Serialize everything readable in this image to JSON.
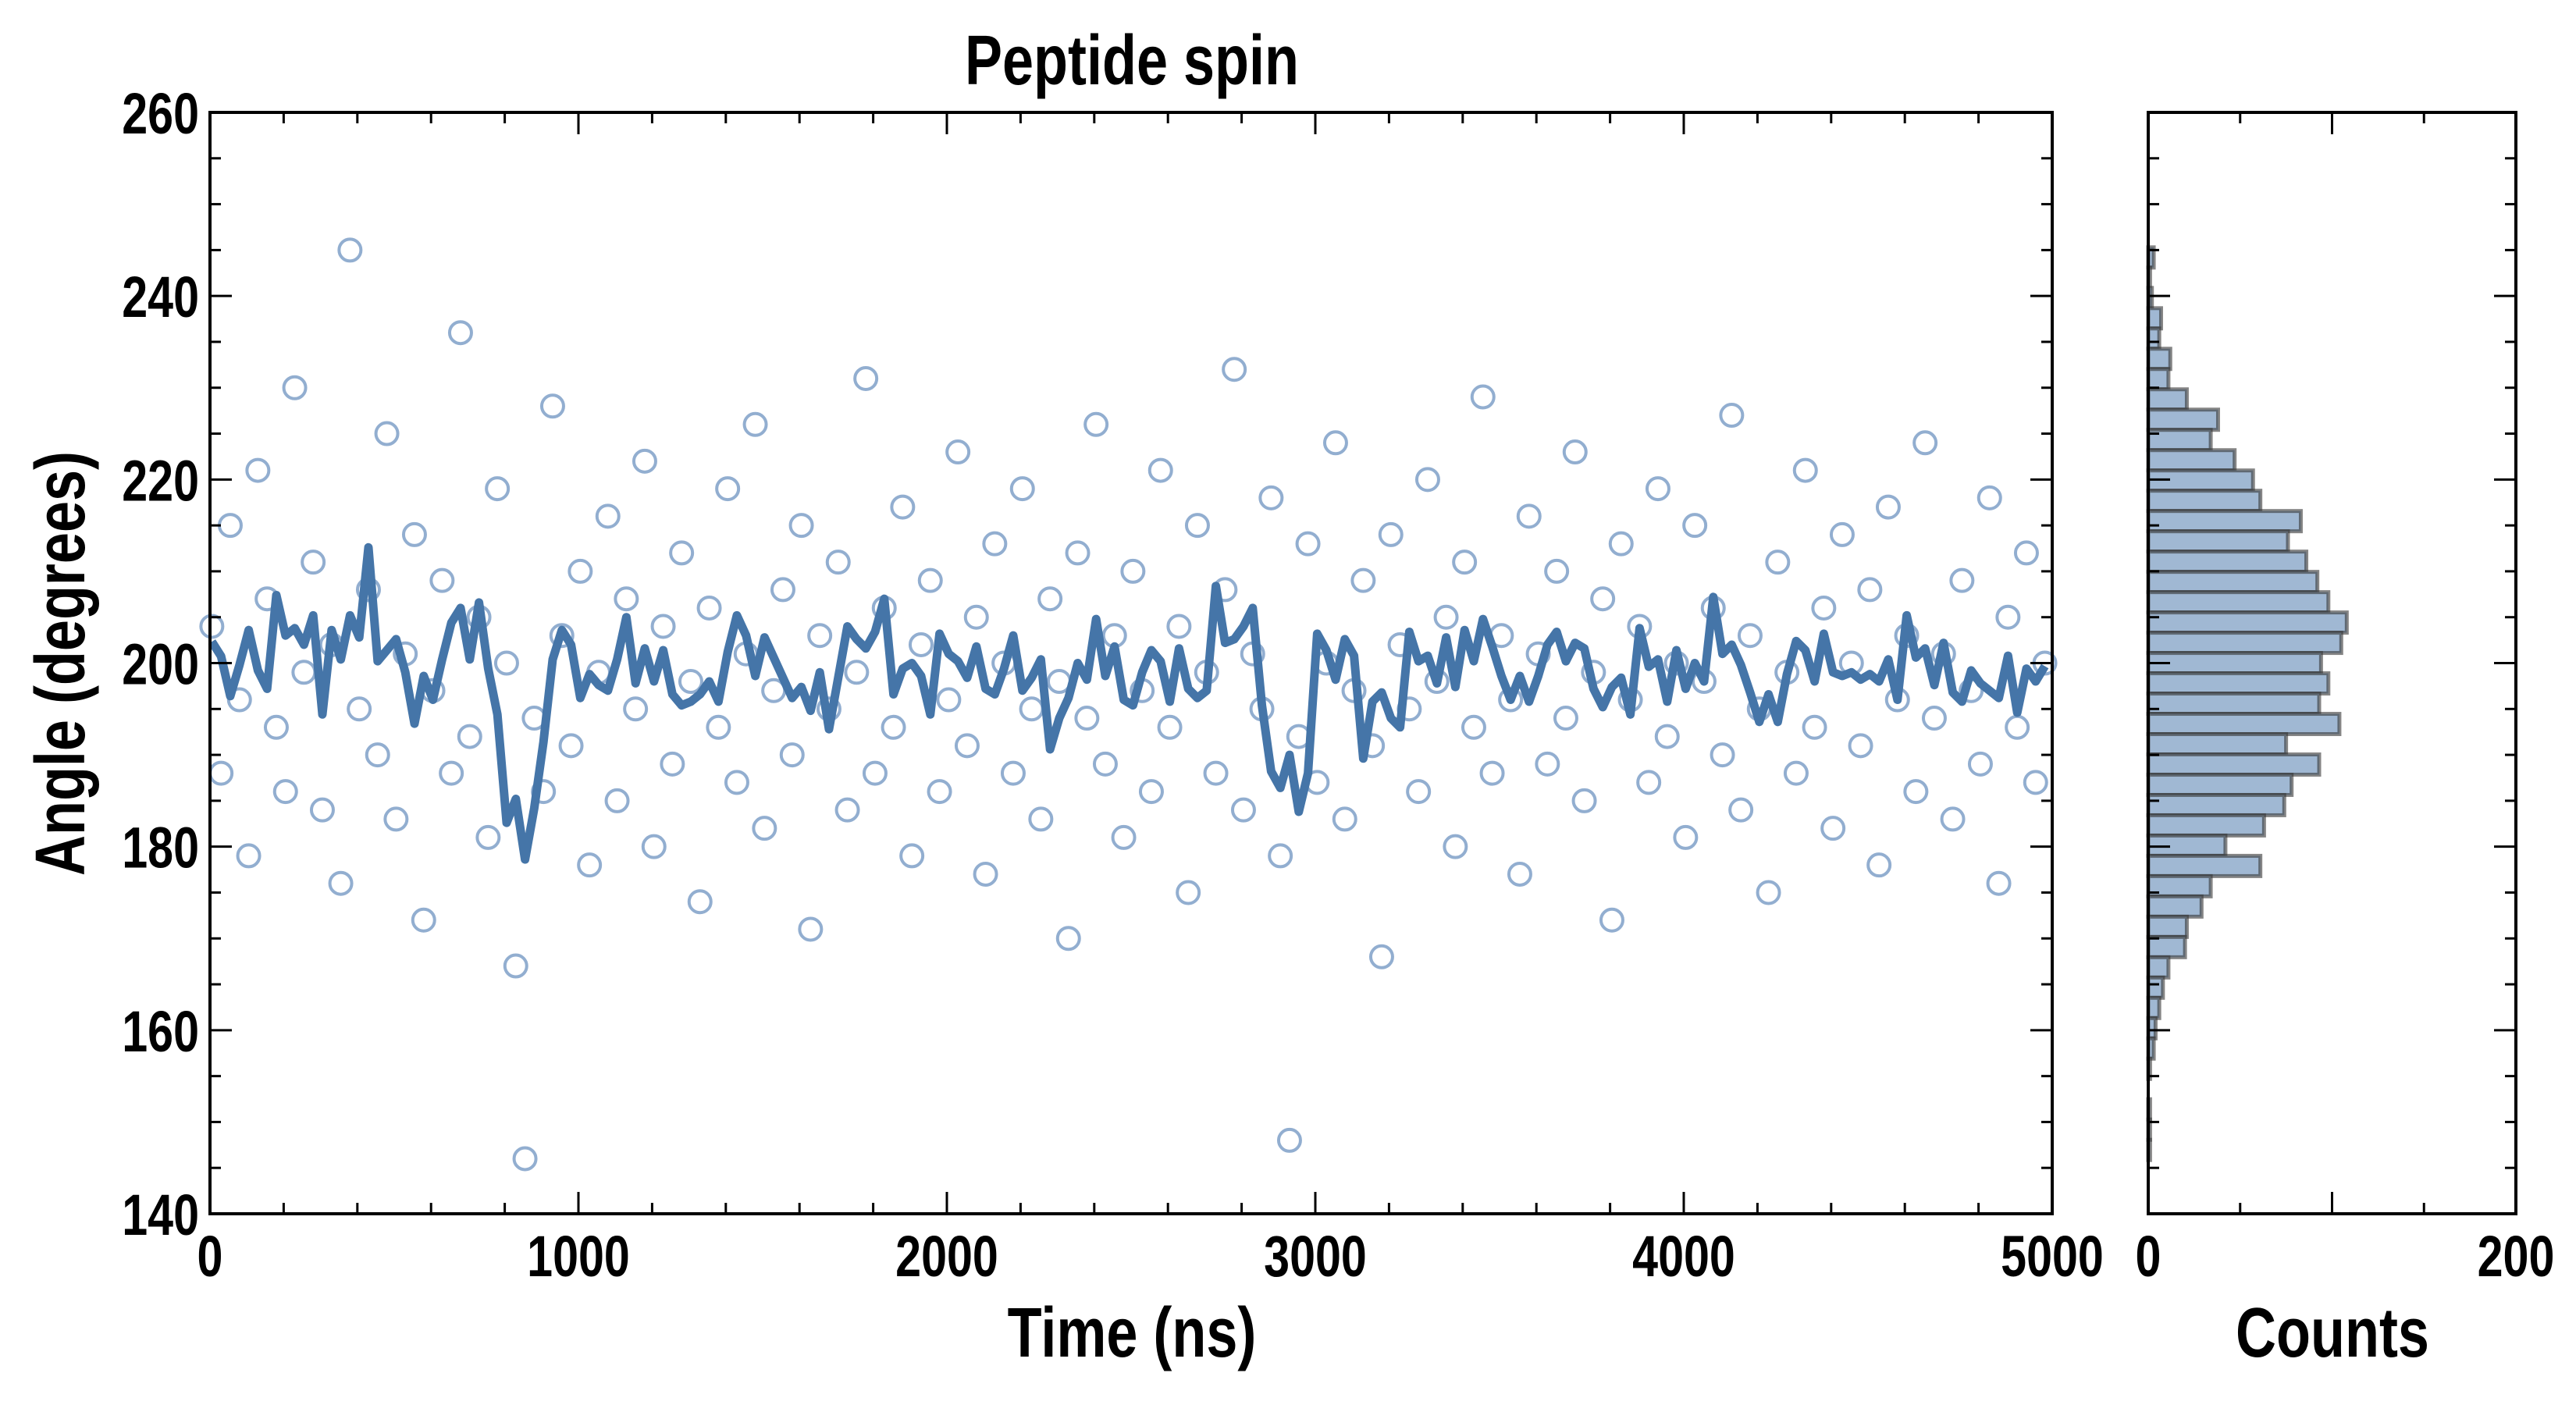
{
  "chart_data": [
    {
      "type": "scatter",
      "title": "Peptide spin",
      "xlabel": "Time (ns)",
      "ylabel": "Angle (degrees)",
      "xlim": [
        0,
        5000
      ],
      "ylim": [
        140,
        260
      ],
      "x_ticks": [
        "0",
        "1000",
        "2000",
        "3000",
        "4000",
        "5000"
      ],
      "y_ticks": [
        "140",
        "160",
        "180",
        "200",
        "220",
        "240",
        "260"
      ],
      "x_step": 25,
      "smoothing_window": 5,
      "colors": {
        "points": "#4a78b0",
        "line": "#4575a8"
      },
      "series": [
        {
          "name": "angle",
          "kind": "points",
          "values": [
            204,
            188,
            215,
            196,
            179,
            221,
            207,
            193,
            186,
            230,
            199,
            211,
            184,
            202,
            176,
            245,
            195,
            208,
            190,
            225,
            183,
            201,
            214,
            172,
            197,
            209,
            188,
            236,
            192,
            205,
            181,
            219,
            200,
            167,
            146,
            194,
            186,
            228,
            203,
            191,
            210,
            178,
            199,
            216,
            185,
            207,
            195,
            222,
            180,
            204,
            189,
            212,
            198,
            174,
            206,
            193,
            219,
            187,
            201,
            226,
            182,
            197,
            208,
            190,
            215,
            171,
            203,
            195,
            211,
            184,
            199,
            231,
            188,
            206,
            193,
            217,
            179,
            202,
            209,
            186,
            196,
            223,
            191,
            205,
            177,
            213,
            200,
            188,
            219,
            195,
            183,
            207,
            198,
            170,
            212,
            194,
            226,
            189,
            203,
            181,
            210,
            197,
            186,
            221,
            193,
            204,
            175,
            215,
            199,
            188,
            208,
            232,
            184,
            201,
            195,
            218,
            179,
            148,
            192,
            213,
            187,
            200,
            224,
            183,
            197,
            209,
            191,
            168,
            214,
            202,
            195,
            186,
            220,
            198,
            205,
            180,
            211,
            193,
            229,
            188,
            203,
            196,
            177,
            216,
            201,
            189,
            210,
            194,
            223,
            185,
            199,
            207,
            172,
            213,
            196,
            204,
            187,
            219,
            192,
            200,
            181,
            215,
            198,
            206,
            190,
            227,
            184,
            203,
            195,
            175,
            211,
            199,
            188,
            221,
            193,
            206,
            182,
            214,
            200,
            191,
            208,
            178,
            217,
            196,
            203,
            186,
            224,
            194,
            201,
            183,
            209,
            197,
            189,
            218,
            176,
            205,
            193,
            212,
            187,
            200
          ]
        },
        {
          "name": "rolling mean",
          "kind": "line"
        }
      ]
    },
    {
      "type": "bar",
      "orientation": "horizontal",
      "xlabel": "Counts",
      "xlim": [
        0,
        200
      ],
      "x_ticks": [
        "0",
        "200"
      ],
      "bin_start": 245.3,
      "bin_width": 2.21,
      "colors": {
        "fill": "#a0b8d3",
        "edge": "#333333"
      },
      "counts": [
        3,
        1,
        2,
        7,
        6,
        12,
        11,
        21,
        38,
        34,
        47,
        57,
        61,
        83,
        76,
        86,
        92,
        98,
        108,
        105,
        94,
        98,
        93,
        104,
        75,
        93,
        78,
        74,
        63,
        42,
        61,
        34,
        29,
        21,
        20,
        11,
        8,
        6,
        4,
        3,
        1,
        0,
        1,
        1,
        1
      ]
    }
  ]
}
